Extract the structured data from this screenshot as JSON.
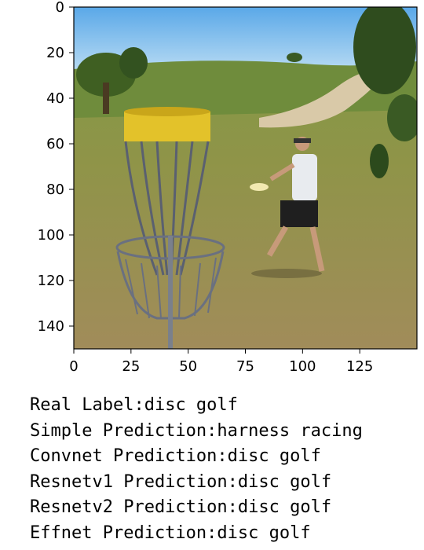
{
  "chart_data": {
    "type": "image",
    "title": "",
    "xlabel": "",
    "ylabel": "",
    "xlim": [
      0,
      150
    ],
    "ylim": [
      150,
      0
    ],
    "x_ticks": [
      0,
      25,
      50,
      75,
      100,
      125
    ],
    "y_ticks": [
      0,
      20,
      40,
      60,
      80,
      100,
      120,
      140
    ],
    "image_content": "photo of a disc golf basket in a grassy field with a player throwing a disc"
  },
  "captions": [
    {
      "label": "Real Label",
      "value": "disc golf"
    },
    {
      "label": "Simple Prediction",
      "value": "harness racing"
    },
    {
      "label": "Convnet Prediction",
      "value": "disc golf"
    },
    {
      "label": "Resnetv1 Prediction",
      "value": "disc golf"
    },
    {
      "label": "Resnetv2 Prediction",
      "value": "disc golf"
    },
    {
      "label": "Effnet Prediction",
      "value": "disc golf"
    }
  ]
}
